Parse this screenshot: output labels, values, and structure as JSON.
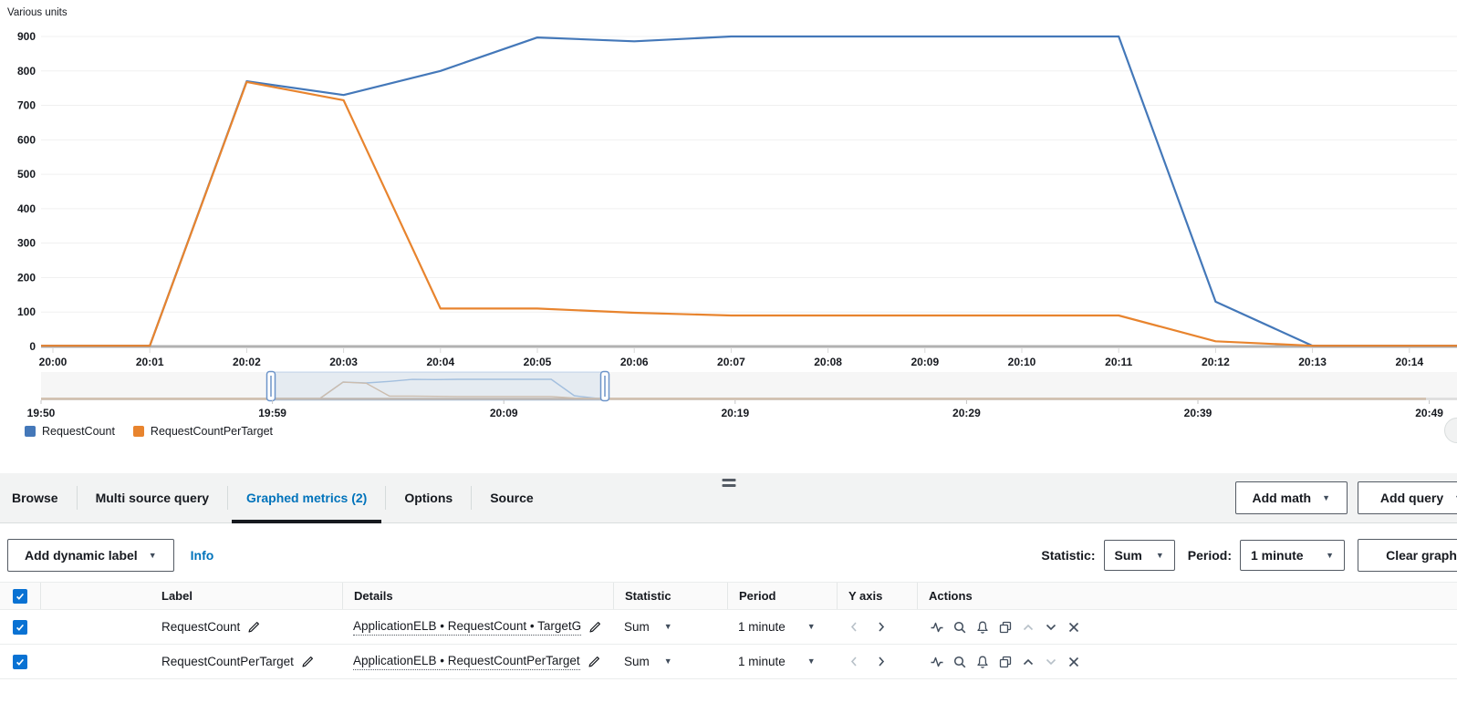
{
  "chart_data": {
    "type": "line",
    "title": "",
    "ylabel": "Various units",
    "xlabel": "",
    "ylim": [
      0,
      900
    ],
    "y_tick_step": 100,
    "grid": true,
    "legend_position": "bottom-left",
    "x": [
      "20:00",
      "20:01",
      "20:02",
      "20:03",
      "20:04",
      "20:05",
      "20:06",
      "20:07",
      "20:08",
      "20:09",
      "20:10",
      "20:11",
      "20:12",
      "20:13",
      "20:14"
    ],
    "series": [
      {
        "name": "RequestCount",
        "color": "#4478b9",
        "values": [
          2,
          2,
          770,
          730,
          800,
          897,
          886,
          900,
          900,
          900,
          900,
          900,
          130,
          2,
          2
        ]
      },
      {
        "name": "RequestCountPerTarget",
        "color": "#e8842e",
        "values": [
          2,
          2,
          768,
          715,
          110,
          110,
          98,
          90,
          90,
          90,
          90,
          90,
          15,
          2,
          2
        ]
      }
    ]
  },
  "timeline": {
    "labels": [
      "19:50",
      "19:59",
      "20:09",
      "20:19",
      "20:29",
      "20:39",
      "20:49"
    ]
  },
  "panel": {
    "tabs": [
      {
        "label": "Browse"
      },
      {
        "label": "Multi source query"
      },
      {
        "label": "Graphed metrics (2)"
      },
      {
        "label": "Options"
      },
      {
        "label": "Source"
      }
    ],
    "add_math_label": "Add math",
    "add_query_label": "Add query",
    "controls": {
      "add_dynamic_label": "Add dynamic label",
      "info_label": "Info",
      "statistic_label": "Statistic:",
      "statistic_value": "Sum",
      "period_label": "Period:",
      "period_value": "1 minute",
      "clear_graph_label": "Clear graph"
    },
    "table": {
      "columns": [
        "Label",
        "Details",
        "Statistic",
        "Period",
        "Y axis",
        "Actions"
      ],
      "rows": [
        {
          "checked": true,
          "color": "#3b73af",
          "label": "RequestCount",
          "details": "ApplicationELB • RequestCount • TargetG",
          "statistic": "Sum",
          "period": "1 minute"
        },
        {
          "checked": true,
          "color": "#e8842e",
          "label": "RequestCountPerTarget",
          "details": "ApplicationELB • RequestCountPerTarget",
          "statistic": "Sum",
          "period": "1 minute"
        }
      ]
    }
  },
  "colors": {
    "accent_blue": "#0073bb",
    "grid_line": "#f0f0f0",
    "axis_line": "#b1b1b1",
    "mini_blue": "#a9c3e0",
    "mini_orange": "#d9c0a8",
    "mini_baseline": "#c9b9ab",
    "selection_fill": "rgba(130,170,215,0.14)",
    "selection_stroke": "rgba(130,170,215,0.45)",
    "handle_stroke": "#6d94c9"
  }
}
